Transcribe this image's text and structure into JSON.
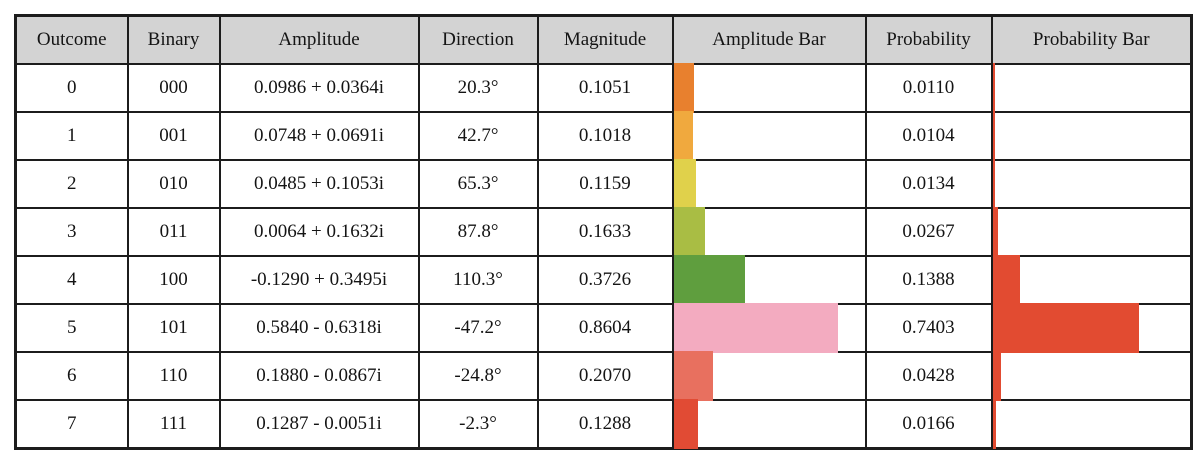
{
  "table": {
    "header_bg": "#d3d3d3",
    "border_color": "#1c1c1c",
    "probability_bar_color": "#e24b31",
    "headers": [
      {
        "label": "Outcome"
      },
      {
        "label": "Binary"
      },
      {
        "label": "Amplitude"
      },
      {
        "label": "Direction"
      },
      {
        "label": "Magnitude"
      },
      {
        "label": "Amplitude Bar"
      },
      {
        "label": "Probability"
      },
      {
        "label": "Probability Bar"
      }
    ],
    "rows": [
      {
        "outcome": "0",
        "binary": "000",
        "amplitude": "0.0986 + 0.0364i",
        "direction": "20.3°",
        "magnitude": "0.1051",
        "magnitude_value": 0.1051,
        "amplitude_bar_color": "#e8802e",
        "probability": "0.0110",
        "probability_value": 0.011
      },
      {
        "outcome": "1",
        "binary": "001",
        "amplitude": "0.0748 + 0.0691i",
        "direction": "42.7°",
        "magnitude": "0.1018",
        "magnitude_value": 0.1018,
        "amplitude_bar_color": "#f0a93e",
        "probability": "0.0104",
        "probability_value": 0.0104
      },
      {
        "outcome": "2",
        "binary": "010",
        "amplitude": "0.0485 + 0.1053i",
        "direction": "65.3°",
        "magnitude": "0.1159",
        "magnitude_value": 0.1159,
        "amplitude_bar_color": "#e0d14b",
        "probability": "0.0134",
        "probability_value": 0.0134
      },
      {
        "outcome": "3",
        "binary": "011",
        "amplitude": "0.0064 + 0.1632i",
        "direction": "87.8°",
        "magnitude": "0.1633",
        "magnitude_value": 0.1633,
        "amplitude_bar_color": "#a9bd44",
        "probability": "0.0267",
        "probability_value": 0.0267
      },
      {
        "outcome": "4",
        "binary": "100",
        "amplitude": "-0.1290 + 0.3495i",
        "direction": "110.3°",
        "magnitude": "0.3726",
        "magnitude_value": 0.3726,
        "amplitude_bar_color": "#5f9e3e",
        "probability": "0.1388",
        "probability_value": 0.1388
      },
      {
        "outcome": "5",
        "binary": "101",
        "amplitude": "0.5840 - 0.6318i",
        "direction": "-47.2°",
        "magnitude": "0.8604",
        "magnitude_value": 0.8604,
        "amplitude_bar_color": "#f3abc0",
        "probability": "0.7403",
        "probability_value": 0.7403
      },
      {
        "outcome": "6",
        "binary": "110",
        "amplitude": "0.1880 - 0.0867i",
        "direction": "-24.8°",
        "magnitude": "0.2070",
        "magnitude_value": 0.207,
        "amplitude_bar_color": "#e8705f",
        "probability": "0.0428",
        "probability_value": 0.0428
      },
      {
        "outcome": "7",
        "binary": "111",
        "amplitude": "0.1287 - 0.0051i",
        "direction": "-2.3°",
        "magnitude": "0.1288",
        "magnitude_value": 0.1288,
        "amplitude_bar_color": "#e14b34",
        "probability": "0.0166",
        "probability_value": 0.0166
      }
    ]
  },
  "chart_data": {
    "type": "table",
    "title": "",
    "columns": [
      "Outcome",
      "Binary",
      "Amplitude",
      "Direction",
      "Magnitude",
      "Amplitude Bar",
      "Probability",
      "Probability Bar"
    ],
    "outcomes": [
      0,
      1,
      2,
      3,
      4,
      5,
      6,
      7
    ],
    "binary": [
      "000",
      "001",
      "010",
      "011",
      "100",
      "101",
      "110",
      "111"
    ],
    "amplitude": [
      "0.0986 + 0.0364i",
      "0.0748 + 0.0691i",
      "0.0485 + 0.1053i",
      "0.0064 + 0.1632i",
      "-0.1290 + 0.3495i",
      "0.5840 - 0.6318i",
      "0.1880 - 0.0867i",
      "0.1287 - 0.0051i"
    ],
    "direction_deg": [
      20.3,
      42.7,
      65.3,
      87.8,
      110.3,
      -47.2,
      -24.8,
      -2.3
    ],
    "magnitude": [
      0.1051,
      0.1018,
      0.1159,
      0.1633,
      0.3726,
      0.8604,
      0.207,
      0.1288
    ],
    "probability": [
      0.011,
      0.0104,
      0.0134,
      0.0267,
      0.1388,
      0.7403,
      0.0428,
      0.0166
    ],
    "amplitude_bar_colors": [
      "#e8802e",
      "#f0a93e",
      "#e0d14b",
      "#a9bd44",
      "#5f9e3e",
      "#f3abc0",
      "#e8705f",
      "#e14b34"
    ],
    "probability_bar_color": "#e24b31",
    "layout_hints": {
      "bar_scale": "bar width fraction of cell equals value (0-1)",
      "grid": "full black gridlines, gray header row"
    }
  }
}
